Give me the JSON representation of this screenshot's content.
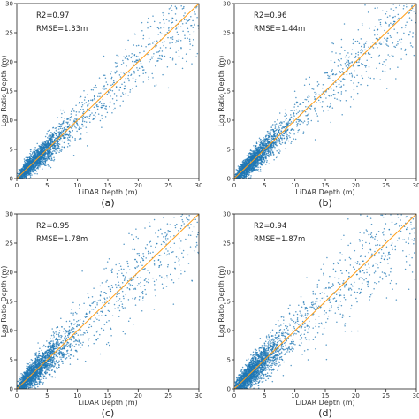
{
  "chart_data": [
    {
      "type": "scatter",
      "caption": "(a)",
      "xlabel": "LiDAR Depth (m)",
      "ylabel": "Log Ratio Depth (m)",
      "xlim": [
        0,
        30
      ],
      "ylim": [
        0,
        30
      ],
      "xticks": [
        0,
        5,
        10,
        15,
        20,
        25,
        30
      ],
      "yticks": [
        0,
        5,
        10,
        15,
        20,
        25,
        30
      ],
      "annotations": [
        "R2=0.97",
        "RMSE=1.33m"
      ],
      "reference_line": {
        "x": [
          0,
          30
        ],
        "y": [
          0,
          30
        ]
      },
      "noise": 1.33,
      "seed": 11,
      "colors": {
        "points": "#1f77b4",
        "line": "#ff9f1c"
      }
    },
    {
      "type": "scatter",
      "caption": "(b)",
      "xlabel": "LiDAR Depth (m)",
      "ylabel": "Log Ratio Depth (m)",
      "xlim": [
        0,
        30
      ],
      "ylim": [
        0,
        30
      ],
      "xticks": [
        0,
        5,
        10,
        15,
        20,
        25,
        30
      ],
      "yticks": [
        0,
        5,
        10,
        15,
        20,
        25,
        30
      ],
      "annotations": [
        "R2=0.96",
        "RMSE=1.44m"
      ],
      "reference_line": {
        "x": [
          0,
          30
        ],
        "y": [
          0,
          30
        ]
      },
      "noise": 1.44,
      "seed": 23,
      "colors": {
        "points": "#1f77b4",
        "line": "#ff9f1c"
      }
    },
    {
      "type": "scatter",
      "caption": "(c)",
      "xlabel": "LiDAR Depth (m)",
      "ylabel": "Log Ratio Depth (m)",
      "xlim": [
        0,
        30
      ],
      "ylim": [
        0,
        30
      ],
      "xticks": [
        0,
        5,
        10,
        15,
        20,
        25,
        30
      ],
      "yticks": [
        0,
        5,
        10,
        15,
        20,
        25,
        30
      ],
      "annotations": [
        "R2=0.95",
        "RMSE=1.78m"
      ],
      "reference_line": {
        "x": [
          0,
          30
        ],
        "y": [
          0,
          30
        ]
      },
      "noise": 1.78,
      "seed": 37,
      "colors": {
        "points": "#1f77b4",
        "line": "#ff9f1c"
      }
    },
    {
      "type": "scatter",
      "caption": "(d)",
      "xlabel": "LiDAR Depth (m)",
      "ylabel": "Log Ratio Depth (m)",
      "xlim": [
        0,
        30
      ],
      "ylim": [
        0,
        30
      ],
      "xticks": [
        0,
        5,
        10,
        15,
        20,
        25,
        30
      ],
      "yticks": [
        0,
        5,
        10,
        15,
        20,
        25,
        30
      ],
      "annotations": [
        "R2=0.94",
        "RMSE=1.87m"
      ],
      "reference_line": {
        "x": [
          0,
          30
        ],
        "y": [
          0,
          30
        ]
      },
      "noise": 1.87,
      "seed": 53,
      "colors": {
        "points": "#1f77b4",
        "line": "#ff9f1c"
      }
    }
  ]
}
